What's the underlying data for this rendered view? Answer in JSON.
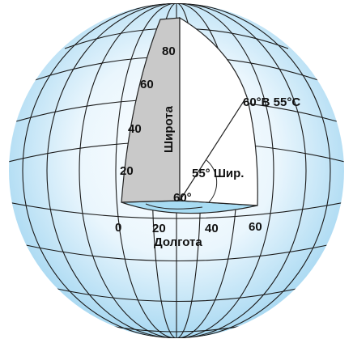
{
  "latitude": {
    "label": "Широта",
    "ticks": [
      "20",
      "40",
      "60",
      "80"
    ]
  },
  "longitude": {
    "label": "Долгота",
    "ticks": [
      "0",
      "20",
      "40",
      "60"
    ]
  },
  "annotations": {
    "point": "60°В 55°С",
    "latitude_angle": "55° Шир.",
    "longitude_angle": "60°"
  }
}
